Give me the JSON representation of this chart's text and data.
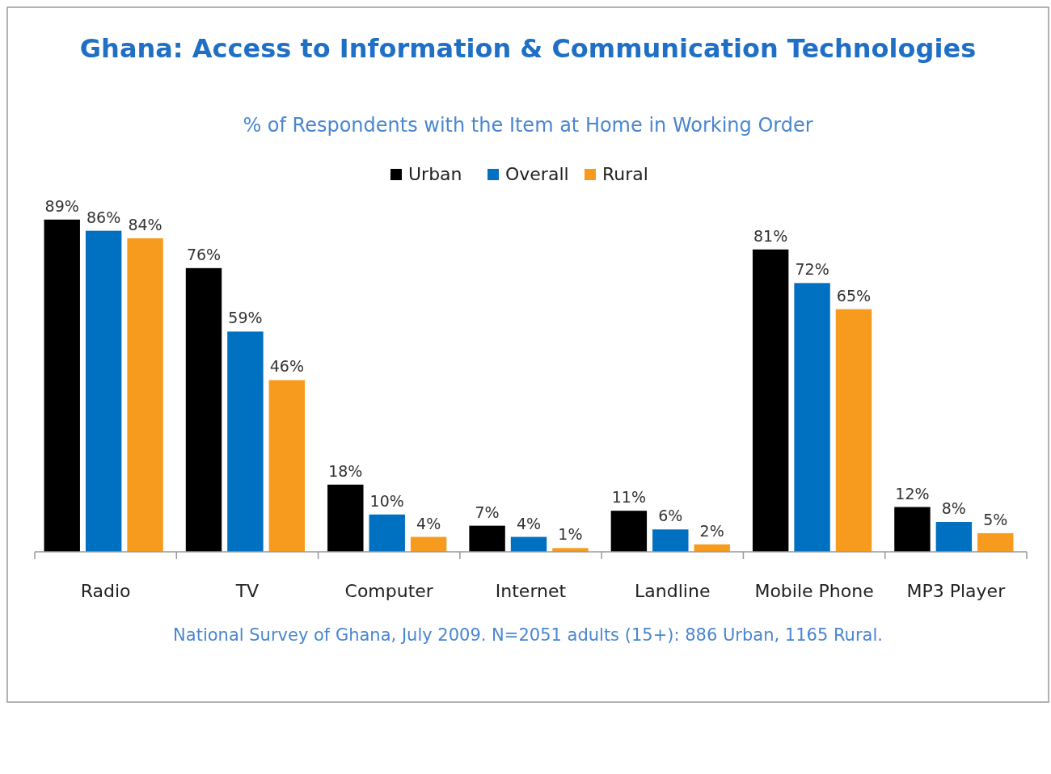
{
  "chart_data": {
    "type": "bar",
    "title": "Ghana: Access to Information & Communication Technologies",
    "subtitle": "% of Respondents with the Item at Home in Working Order",
    "categories": [
      "Radio",
      "TV",
      "Computer",
      "Internet",
      "Landline",
      "Mobile Phone",
      "MP3 Player"
    ],
    "series": [
      {
        "name": "Urban",
        "color": "#000000",
        "values": [
          89,
          76,
          18,
          7,
          11,
          81,
          12
        ],
        "value_labels": [
          "89%",
          "76%",
          "18%",
          "7%",
          "11%",
          "81%",
          "12%"
        ]
      },
      {
        "name": "Overall",
        "color": "#0070c0",
        "values": [
          86,
          59,
          10,
          4,
          6,
          72,
          8
        ],
        "value_labels": [
          "86%",
          "59%",
          "10%",
          "4%",
          "6%",
          "72%",
          "8%"
        ]
      },
      {
        "name": "Rural",
        "color": "#f79b1e",
        "values": [
          84,
          46,
          4,
          1,
          2,
          65,
          5
        ],
        "value_labels": [
          "84%",
          "46%",
          "4%",
          "1%",
          "2%",
          "65%",
          "5%"
        ]
      }
    ],
    "legend": "top",
    "grid": false,
    "annotations": [
      "National Survey of Ghana, July 2009. N=2051 adults (15+): 886 Urban, 1165 Rural."
    ]
  }
}
